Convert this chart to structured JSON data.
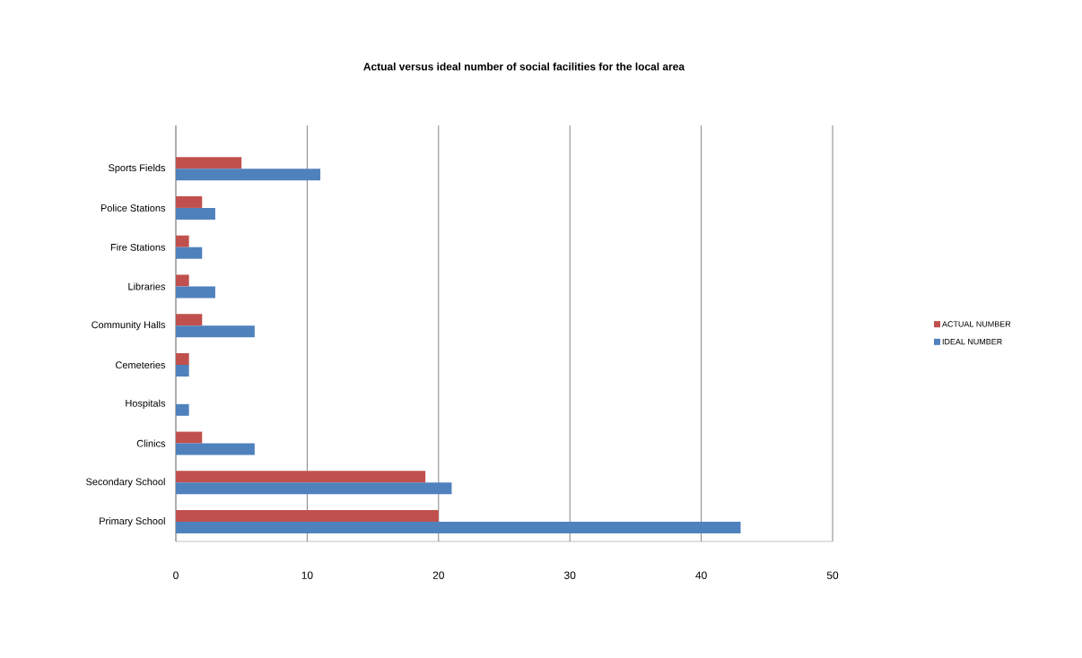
{
  "chart_data": {
    "type": "bar",
    "orientation": "horizontal",
    "title": "Actual versus ideal number of social facilities for  the local area",
    "categories": [
      "Sports Fields",
      "Police Stations",
      "Fire Stations",
      "Libraries",
      "Community Halls",
      "Cemeteries",
      "Hospitals",
      "Clinics",
      "Secondary School",
      "Primary School"
    ],
    "series": [
      {
        "name": "ACTUAL NUMBER",
        "color": "#c0504d",
        "values": [
          5,
          2,
          1,
          1,
          2,
          1,
          0,
          2,
          19,
          20
        ]
      },
      {
        "name": "IDEAL NUMBER",
        "color": "#4f81bd",
        "values": [
          11,
          3,
          2,
          3,
          6,
          1,
          1,
          6,
          21,
          43
        ]
      }
    ],
    "xlim": [
      0,
      50
    ],
    "xticks": [
      0,
      10,
      20,
      30,
      40,
      50
    ],
    "grid": "x",
    "legend": "right"
  }
}
